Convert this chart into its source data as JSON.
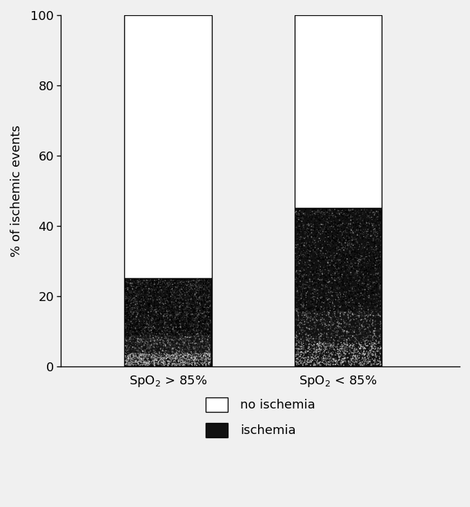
{
  "categories": [
    "SpO₂ > 85%",
    "SpO₂ < 85%"
  ],
  "ischemia_values": [
    25,
    45
  ],
  "no_ischemia_values": [
    75,
    55
  ],
  "ylabel": "% of ischemic events",
  "ylim": [
    0,
    100
  ],
  "yticks": [
    0,
    20,
    40,
    60,
    80,
    100
  ],
  "bar_width": 0.18,
  "ischemia_color": "#111111",
  "no_ischemia_color": "#ffffff",
  "background_color": "#f0f0f0",
  "legend_no_ischemia": "no ischemia",
  "legend_ischemia": "ischemia",
  "bar_positions": [
    0.3,
    0.65
  ]
}
